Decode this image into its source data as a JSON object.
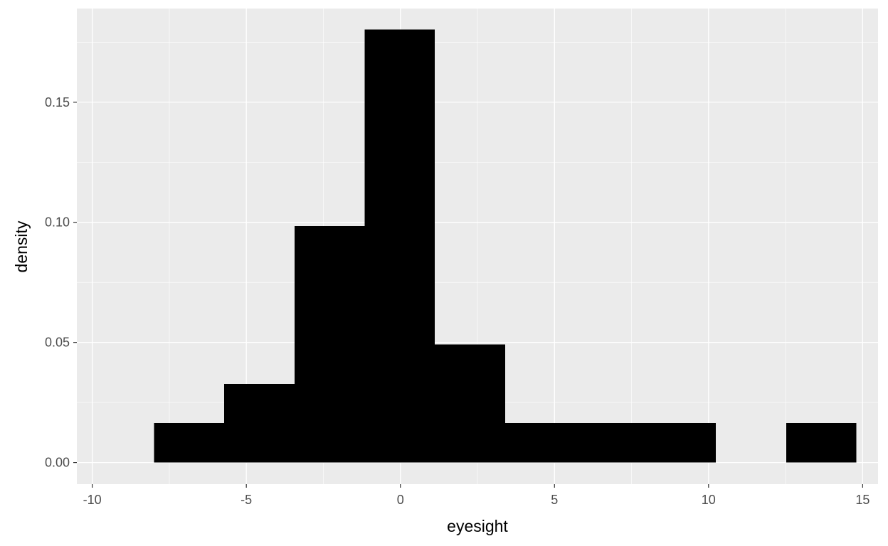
{
  "chart_data": {
    "type": "bar",
    "subtype": "histogram",
    "xlabel": "eyesight",
    "ylabel": "density",
    "xlim": [
      -10.5,
      15.5
    ],
    "ylim": [
      -0.009,
      0.189
    ],
    "x_ticks": [
      -10,
      -5,
      0,
      5,
      10,
      15
    ],
    "x_tick_labels": [
      "-10",
      "-5",
      "0",
      "5",
      "10",
      "15"
    ],
    "y_ticks": [
      0,
      0.05,
      0.1,
      0.15
    ],
    "y_tick_labels": [
      "0.00",
      "0.05",
      "0.10",
      "0.15"
    ],
    "bins": [
      {
        "x0": -8.0,
        "x1": -5.72,
        "density": 0.0164
      },
      {
        "x0": -5.72,
        "x1": -3.44,
        "density": 0.0328
      },
      {
        "x0": -3.44,
        "x1": -1.16,
        "density": 0.0984
      },
      {
        "x0": -1.16,
        "x1": 1.12,
        "density": 0.1803
      },
      {
        "x0": 1.12,
        "x1": 3.4,
        "density": 0.0492
      },
      {
        "x0": 3.4,
        "x1": 5.68,
        "density": 0.0164
      },
      {
        "x0": 5.68,
        "x1": 7.96,
        "density": 0.0164
      },
      {
        "x0": 7.96,
        "x1": 10.24,
        "density": 0.0164
      },
      {
        "x0": 10.24,
        "x1": 12.52,
        "density": 0
      },
      {
        "x0": 12.52,
        "x1": 14.8,
        "density": 0.0164
      }
    ],
    "bar_color": "#000000",
    "panel_background": "#ebebeb",
    "grid_color": "#ffffff",
    "grid": true,
    "legend": "none"
  }
}
